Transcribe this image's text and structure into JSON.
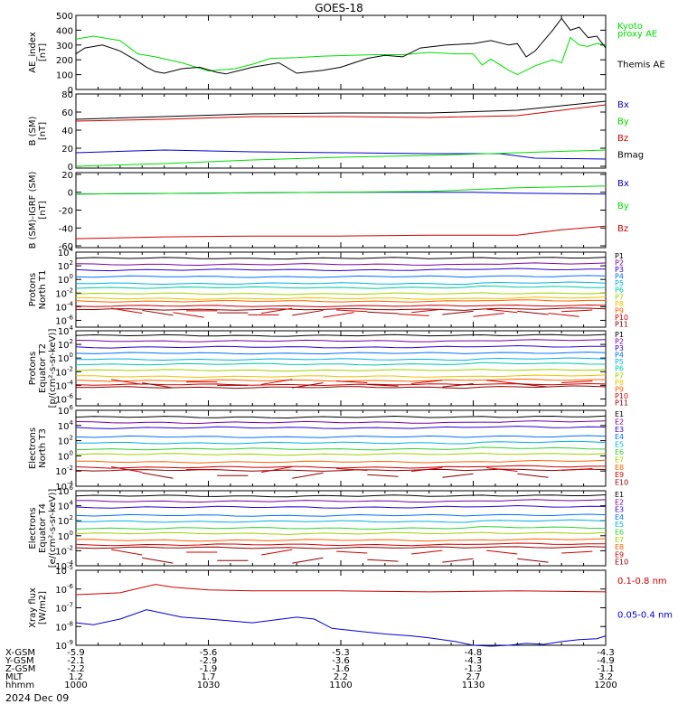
{
  "title": "GOES-18",
  "date_label": "2024 Dec 09",
  "colors": {
    "black": "#000000",
    "green": "#00dd00",
    "blue": "#0000cc",
    "red": "#cc0000",
    "ramp": [
      "#000000",
      "#7a00a0",
      "#2b00d0",
      "#0070ff",
      "#00b0e0",
      "#00c8a0",
      "#30d030",
      "#a0d000",
      "#f0c000",
      "#ff6000",
      "#cc0000",
      "#8a0000"
    ]
  },
  "coords": {
    "labels": [
      "X-GSM",
      "Y-GSM",
      "Z-GSM",
      "MLT",
      "hhmm"
    ],
    "columns": [
      [
        "-5.9",
        "-2.1",
        "-2.2",
        "1.2",
        "1000"
      ],
      [
        "-5.6",
        "-2.9",
        "-1.9",
        "1.7",
        "1030"
      ],
      [
        "-5.3",
        "-3.6",
        "-1.6",
        "2.2",
        "1100"
      ],
      [
        "-4.8",
        "-4.3",
        "-1.3",
        "2.7",
        "1130"
      ],
      [
        "-4.3",
        "-4.9",
        "-1.1",
        "3.2",
        "1200"
      ]
    ]
  },
  "chart_data": [
    {
      "type": "line",
      "ylabel": [
        "AE_index",
        "[nT]"
      ],
      "yscale": "linear",
      "ylim": [
        0,
        500
      ],
      "yticks": [
        [
          0,
          "0"
        ],
        [
          100,
          "100"
        ],
        [
          200,
          "200"
        ],
        [
          300,
          "300"
        ],
        [
          400,
          "400"
        ],
        [
          500,
          "500"
        ]
      ],
      "x_range": [
        0,
        120
      ],
      "legend": [
        [
          "Kyoto",
          "green"
        ],
        [
          "proxy AE",
          "green"
        ],
        [
          "Themis AE",
          "black"
        ]
      ],
      "series": [
        {
          "name": "Kyoto proxy AE",
          "color": "green",
          "x": [
            0,
            4,
            10,
            14,
            18,
            24,
            30,
            36,
            40,
            44,
            50,
            56,
            62,
            68,
            74,
            80,
            86,
            90,
            92,
            94,
            98,
            100,
            104,
            106,
            108,
            110,
            112,
            114,
            116,
            118,
            120
          ],
          "values": [
            340,
            360,
            330,
            240,
            220,
            180,
            125,
            140,
            170,
            210,
            215,
            225,
            230,
            235,
            235,
            250,
            240,
            240,
            165,
            205,
            130,
            100,
            160,
            180,
            200,
            180,
            350,
            300,
            290,
            310,
            300
          ]
        },
        {
          "name": "Themis AE",
          "color": "black",
          "x": [
            0,
            2,
            6,
            10,
            14,
            16,
            18,
            20,
            24,
            28,
            32,
            34,
            40,
            46,
            50,
            56,
            60,
            66,
            70,
            74,
            78,
            84,
            90,
            94,
            98,
            100,
            102,
            104,
            108,
            110,
            112,
            114,
            116,
            118,
            120
          ],
          "values": [
            240,
            280,
            300,
            260,
            190,
            150,
            120,
            110,
            140,
            150,
            115,
            105,
            150,
            180,
            110,
            130,
            150,
            210,
            230,
            220,
            280,
            300,
            310,
            330,
            300,
            310,
            220,
            260,
            400,
            480,
            400,
            420,
            350,
            360,
            280
          ]
        }
      ]
    },
    {
      "type": "line",
      "ylabel": [
        "B (SM)",
        "[nT]"
      ],
      "yscale": "linear",
      "ylim": [
        -2,
        80
      ],
      "yticks": [
        [
          0,
          "0"
        ],
        [
          20,
          "20"
        ],
        [
          40,
          "40"
        ],
        [
          60,
          "60"
        ],
        [
          80,
          "80"
        ]
      ],
      "x_range": [
        0,
        120
      ],
      "legend": [
        [
          "Bx",
          "blue"
        ],
        [
          "By",
          "green"
        ],
        [
          "Bz",
          "red"
        ],
        [
          "Bmag",
          "black"
        ]
      ],
      "series": [
        {
          "name": "Bx",
          "color": "blue",
          "x": [
            0,
            20,
            40,
            60,
            80,
            96,
            104,
            120
          ],
          "values": [
            15,
            18,
            16,
            15,
            14,
            14,
            9,
            8
          ]
        },
        {
          "name": "By",
          "color": "green",
          "x": [
            0,
            20,
            40,
            60,
            80,
            100,
            120
          ],
          "values": [
            0,
            3,
            7,
            10,
            12,
            15,
            18
          ]
        },
        {
          "name": "Bz",
          "color": "red",
          "x": [
            0,
            20,
            40,
            60,
            80,
            100,
            110,
            120
          ],
          "values": [
            50,
            52,
            55,
            55,
            54,
            56,
            62,
            68
          ]
        },
        {
          "name": "Bmag",
          "color": "black",
          "x": [
            0,
            20,
            40,
            60,
            80,
            100,
            110,
            120
          ],
          "values": [
            52,
            55,
            58,
            59,
            59,
            62,
            67,
            72
          ]
        }
      ]
    },
    {
      "type": "line",
      "ylabel": [
        "B (SM)-IGRF (SM)",
        "[nT]"
      ],
      "yscale": "linear",
      "ylim": [
        -62,
        22
      ],
      "yticks": [
        [
          -60,
          "-60"
        ],
        [
          -40,
          "-40"
        ],
        [
          -20,
          "-20"
        ],
        [
          0,
          "0"
        ],
        [
          20,
          "20"
        ]
      ],
      "x_range": [
        0,
        120
      ],
      "legend": [
        [
          "Bx",
          "blue"
        ],
        [
          "By",
          "green"
        ],
        [
          "Bz",
          "red"
        ]
      ],
      "series": [
        {
          "name": "Bx",
          "color": "blue",
          "x": [
            0,
            30,
            60,
            90,
            100,
            120
          ],
          "values": [
            -2,
            -1,
            0,
            0,
            -1,
            -2
          ]
        },
        {
          "name": "By",
          "color": "green",
          "x": [
            0,
            30,
            60,
            80,
            100,
            120
          ],
          "values": [
            -2,
            -1,
            0,
            1,
            5,
            7
          ]
        },
        {
          "name": "Bz",
          "color": "red",
          "x": [
            0,
            20,
            40,
            60,
            80,
            100,
            110,
            120
          ],
          "values": [
            -52,
            -50,
            -49,
            -49,
            -48,
            -48,
            -42,
            -38
          ]
        }
      ]
    },
    {
      "type": "line",
      "ylabel": [
        "Protons",
        "North T1"
      ],
      "yscale": "log",
      "ylim": [
        -7,
        4
      ],
      "yticks": [
        [
          4,
          "10^4"
        ],
        [
          2,
          "10^2"
        ],
        [
          0,
          "10^0"
        ],
        [
          -2,
          "10^-2"
        ],
        [
          -4,
          "10^-4"
        ],
        [
          -6,
          "10^-6"
        ]
      ],
      "x_range": [
        0,
        120
      ],
      "legend": [
        [
          "P1",
          0
        ],
        [
          "P2",
          1
        ],
        [
          "P3",
          2
        ],
        [
          "P4",
          3
        ],
        [
          "P5",
          4
        ],
        [
          "P6",
          5
        ],
        [
          "P7",
          7
        ],
        [
          "P8",
          8
        ],
        [
          "P9",
          9
        ],
        [
          "P10",
          10
        ],
        [
          "P11",
          11
        ]
      ],
      "levels": [
        3.1,
        2.2,
        1.4,
        0.4,
        -0.6,
        -1.2,
        -2.1,
        -2.8,
        -3.2,
        -3.9,
        -4.4
      ],
      "gaps": [
        [
          -4.6,
          -4.9,
          -5.2
        ]
      ]
    },
    {
      "type": "line",
      "ylabel": [
        "Protons",
        "Equator T2",
        "[p/(cm²-s-sr-keV)]"
      ],
      "yscale": "log",
      "ylim": [
        -7,
        4
      ],
      "yticks": [
        [
          4,
          "10^4"
        ],
        [
          2,
          "10^2"
        ],
        [
          0,
          "10^0"
        ],
        [
          -2,
          "10^-2"
        ],
        [
          -4,
          "10^-4"
        ],
        [
          -6,
          "10^-6"
        ]
      ],
      "x_range": [
        0,
        120
      ],
      "legend": [
        [
          "P1",
          0
        ],
        [
          "P2",
          1
        ],
        [
          "P3",
          2
        ],
        [
          "P4",
          3
        ],
        [
          "P5",
          4
        ],
        [
          "P6",
          5
        ],
        [
          "P7",
          7
        ],
        [
          "P8",
          8
        ],
        [
          "P9",
          9
        ],
        [
          "P10",
          10
        ],
        [
          "P11",
          11
        ]
      ],
      "levels": [
        3.3,
        2.5,
        1.6,
        0.7,
        -0.2,
        -0.9,
        -1.8,
        -2.7,
        -3.3,
        -3.9,
        -4.3
      ],
      "gaps": [
        [
          -3.5,
          -4.0
        ]
      ]
    },
    {
      "type": "line",
      "ylabel": [
        "Electrons",
        "North T3"
      ],
      "yscale": "log",
      "ylim": [
        -4,
        6
      ],
      "yticks": [
        [
          6,
          "10^6"
        ],
        [
          4,
          "10^4"
        ],
        [
          2,
          "10^2"
        ],
        [
          0,
          "10^0"
        ],
        [
          -2,
          "10^-2"
        ],
        [
          -4,
          "10^-4"
        ]
      ],
      "x_range": [
        0,
        120
      ],
      "legend": [
        [
          "E1",
          0
        ],
        [
          "E2",
          1
        ],
        [
          "E3",
          2
        ],
        [
          "E4",
          3
        ],
        [
          "E5",
          4
        ],
        [
          "E6",
          6
        ],
        [
          "E7",
          7
        ],
        [
          "E8",
          9
        ],
        [
          "E9",
          10
        ],
        [
          "E10",
          11
        ]
      ],
      "levels": [
        5.1,
        4.4,
        3.7,
        2.5,
        1.7,
        0.9,
        0.2,
        -0.8,
        -1.5,
        -1.9
      ],
      "gaps": [
        [
          -1.8,
          -2.6
        ]
      ]
    },
    {
      "type": "line",
      "ylabel": [
        "Electrons",
        "Equator T4",
        "[e/(cm²-s-sr-keV)]"
      ],
      "yscale": "log",
      "ylim": [
        -4,
        6
      ],
      "yticks": [
        [
          6,
          "10^6"
        ],
        [
          4,
          "10^4"
        ],
        [
          2,
          "10^2"
        ],
        [
          0,
          "10^0"
        ],
        [
          -2,
          "10^-2"
        ],
        [
          -4,
          "10^-4"
        ]
      ],
      "x_range": [
        0,
        120
      ],
      "legend": [
        [
          "E1",
          0
        ],
        [
          "E2",
          1
        ],
        [
          "E3",
          2
        ],
        [
          "E4",
          3
        ],
        [
          "E5",
          4
        ],
        [
          "E6",
          6
        ],
        [
          "E7",
          7
        ],
        [
          "E8",
          9
        ],
        [
          "E9",
          10
        ],
        [
          "E10",
          11
        ]
      ],
      "levels": [
        5.3,
        4.6,
        3.8,
        2.7,
        1.9,
        1.0,
        0.3,
        -0.6,
        -1.2,
        -1.6
      ],
      "gaps": [
        [
          -2.2,
          -3.3
        ]
      ]
    },
    {
      "type": "line",
      "ylabel": [
        "Xray flux",
        "[W/m2]"
      ],
      "yscale": "log",
      "ylim": [
        -9,
        -5
      ],
      "yticks": [
        [
          -5,
          "10^-5"
        ],
        [
          -6,
          "10^-6"
        ],
        [
          -7,
          "10^-7"
        ],
        [
          -8,
          "10^-8"
        ],
        [
          -9,
          "10^-9"
        ]
      ],
      "x_range": [
        0,
        120
      ],
      "legend": [
        [
          "0.1-0.8 nm",
          "red"
        ],
        [
          "0.05-0.4 nm",
          "blue"
        ]
      ],
      "series": [
        {
          "name": "0.1-0.8 nm",
          "color": "red",
          "x": [
            0,
            10,
            18,
            22,
            30,
            40,
            60,
            80,
            100,
            120
          ],
          "values": [
            -6.3,
            -6.2,
            -5.75,
            -5.9,
            -6.05,
            -6.1,
            -6.1,
            -6.15,
            -6.1,
            -6.15
          ]
        },
        {
          "name": "0.05-0.4 nm",
          "color": "blue",
          "x": [
            0,
            4,
            10,
            16,
            20,
            24,
            30,
            40,
            50,
            54,
            58,
            62,
            66,
            70,
            76,
            80,
            86,
            90,
            94,
            98,
            102,
            106,
            110,
            114,
            118,
            120
          ],
          "values": [
            -7.8,
            -7.9,
            -7.6,
            -7.1,
            -7.3,
            -7.5,
            -7.6,
            -7.8,
            -7.5,
            -7.6,
            -8.1,
            -8.2,
            -8.3,
            -8.4,
            -8.5,
            -8.6,
            -8.8,
            -9.0,
            -9.05,
            -9.0,
            -8.9,
            -8.95,
            -8.8,
            -8.7,
            -8.65,
            -8.5
          ]
        }
      ]
    }
  ]
}
